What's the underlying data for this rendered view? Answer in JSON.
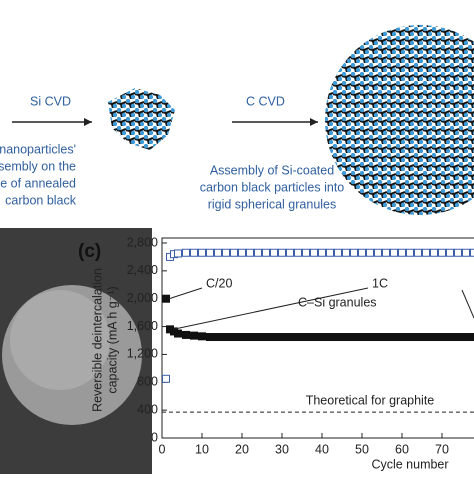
{
  "diagram": {
    "step1": "Si CVD",
    "step2": "C CVD",
    "left_text": [
      "nanoparticles'",
      "assembly on the",
      "face of annealed",
      "carbon black"
    ],
    "middle_text": [
      "Assembly of Si-coated",
      "carbon black particles into",
      "rigid spherical granules"
    ]
  },
  "chart_data": {
    "type": "scatter",
    "panel_label": "(c)",
    "x_label": "Cycle number",
    "y_label": [
      "Reversible deintercalation",
      "capacity (mA h g⁻¹)"
    ],
    "xlim": [
      0,
      78
    ],
    "ylim": [
      0,
      2800
    ],
    "xticks": [
      0,
      10,
      20,
      30,
      40,
      50,
      60,
      70
    ],
    "yticks": [
      0,
      400,
      800,
      {
        "value": 1200,
        "label": "1,200"
      },
      {
        "value": 1600,
        "label": "1,600"
      },
      {
        "value": 2000,
        "label": "2,000"
      },
      {
        "value": 2400,
        "label": "2,400"
      },
      {
        "value": 2800,
        "label": "2,800"
      }
    ],
    "x": [
      1,
      2,
      3,
      4,
      6,
      8,
      10,
      12,
      14,
      16,
      18,
      20,
      22,
      24,
      26,
      28,
      30,
      32,
      34,
      36,
      38,
      40,
      42,
      44,
      46,
      48,
      50,
      52,
      54,
      56,
      58,
      60,
      62,
      64,
      66,
      68,
      70,
      72,
      74,
      76,
      78
    ],
    "series": [
      {
        "color": "#3a5fa8",
        "marker": "open-square",
        "values": [
          850,
          2600,
          2640,
          2650,
          2660,
          2660,
          2660,
          2660,
          2660,
          2660,
          2660,
          2660,
          2660,
          2660,
          2660,
          2660,
          2660,
          2660,
          2660,
          2660,
          2660,
          2660,
          2660,
          2660,
          2660,
          2660,
          2660,
          2660,
          2660,
          2660,
          2660,
          2660,
          2660,
          2660,
          2660,
          2660,
          2660,
          2660,
          2660,
          2660,
          2660
        ]
      },
      {
        "color": "#111111",
        "marker": "filled-square",
        "values": [
          2000,
          1560,
          1530,
          1500,
          1480,
          1470,
          1460,
          1450,
          1450,
          1450,
          1450,
          1450,
          1450,
          1450,
          1450,
          1450,
          1450,
          1450,
          1450,
          1450,
          1450,
          1450,
          1450,
          1450,
          1450,
          1450,
          1450,
          1450,
          1450,
          1450,
          1450,
          1450,
          1450,
          1450,
          1450,
          1450,
          1450,
          1450,
          1450,
          1450,
          1450
        ]
      }
    ],
    "reference_line": {
      "value": 372,
      "label": "Theoretical for graphite"
    },
    "annotations": [
      "C/20",
      "1C",
      "C–Si granules"
    ]
  }
}
